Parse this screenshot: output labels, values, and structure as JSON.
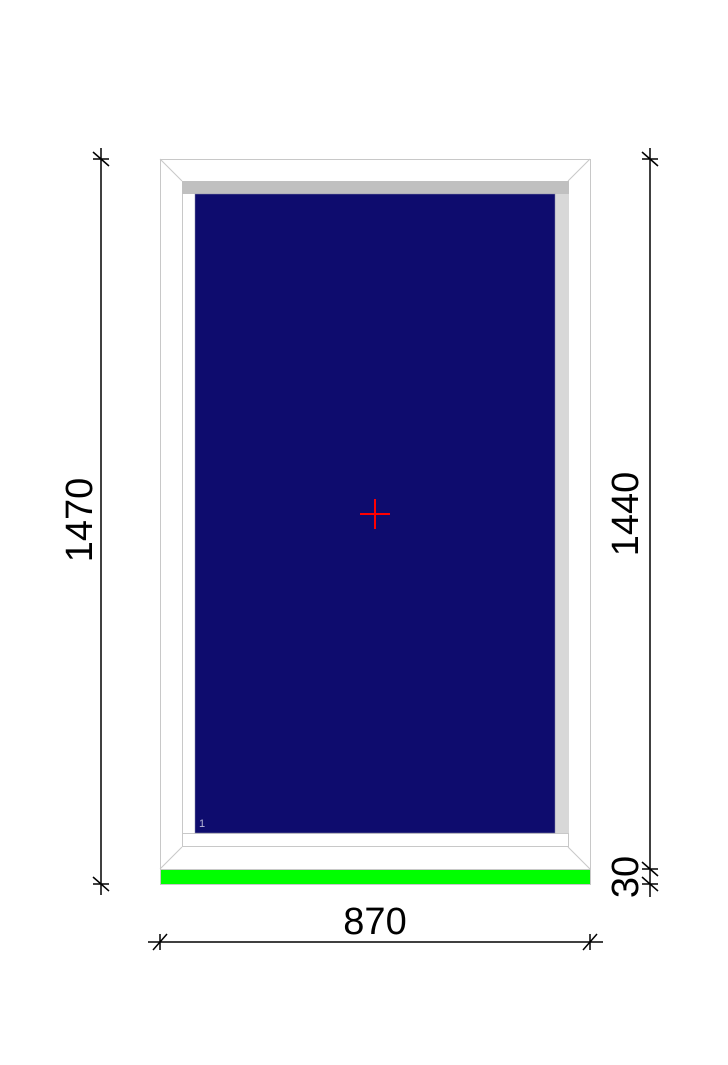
{
  "dimensions": {
    "total_height": "1470",
    "glass_section_height": "1440",
    "sill_height": "30",
    "total_width": "870"
  },
  "sash": {
    "number": "1"
  },
  "colors": {
    "glass": "#0e0c6e",
    "sill": "#00ff00",
    "frame_edge": "#c8c8c8",
    "sash_shadow": "#c0c0c0",
    "center_marker": "#ff0000"
  }
}
